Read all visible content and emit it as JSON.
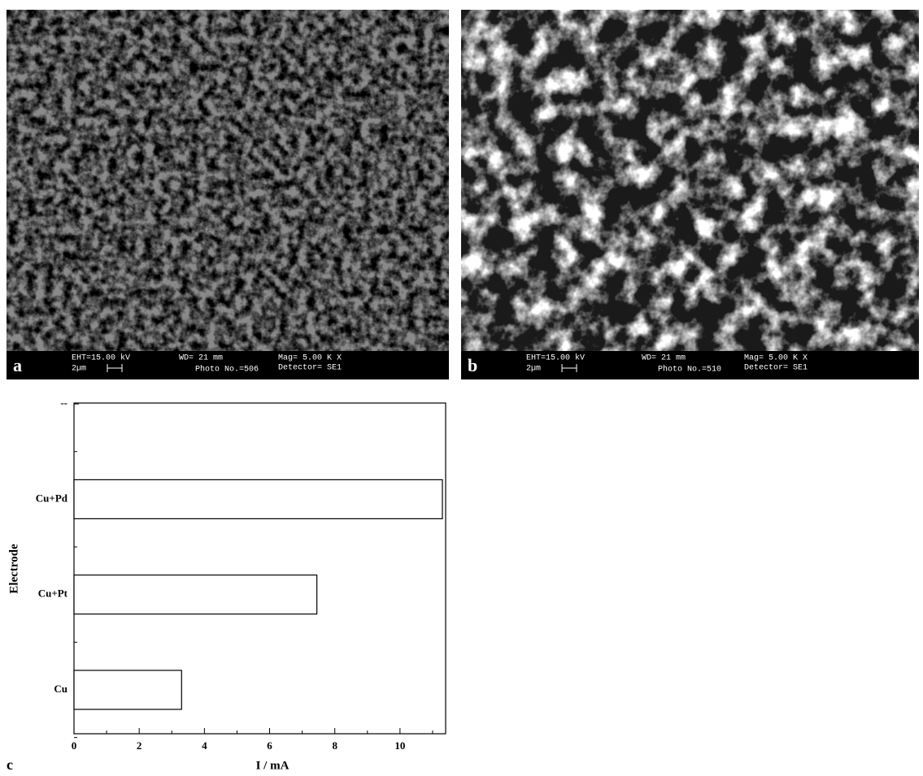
{
  "panels": [
    {
      "label": "a",
      "eht": "EHT=15.00 kV",
      "wd": "WD=  21 mm",
      "mag": "Mag=  5.00 K X",
      "scale": "2µm",
      "photo": "Photo No.=506",
      "detector": "Detector= SE1"
    },
    {
      "label": "b",
      "eht": "EHT=15.00 kV",
      "wd": "WD=  21 mm",
      "mag": "Mag=  5.00 K X",
      "scale": "2µm",
      "photo": "Photo No.=510",
      "detector": "Detector= SE1"
    }
  ],
  "chart_data": {
    "type": "barh",
    "panel_label": "c",
    "xlabel": "I / mA",
    "ylabel": "Electrode",
    "categories": [
      "Cu",
      "Cu+Pt",
      "Cu+Pd",
      "--"
    ],
    "values": [
      3.3,
      7.45,
      11.3,
      null
    ],
    "color": "#ffffff",
    "xlim": [
      0,
      11.4
    ],
    "xticks": [
      0,
      2,
      4,
      6,
      8,
      10
    ]
  }
}
